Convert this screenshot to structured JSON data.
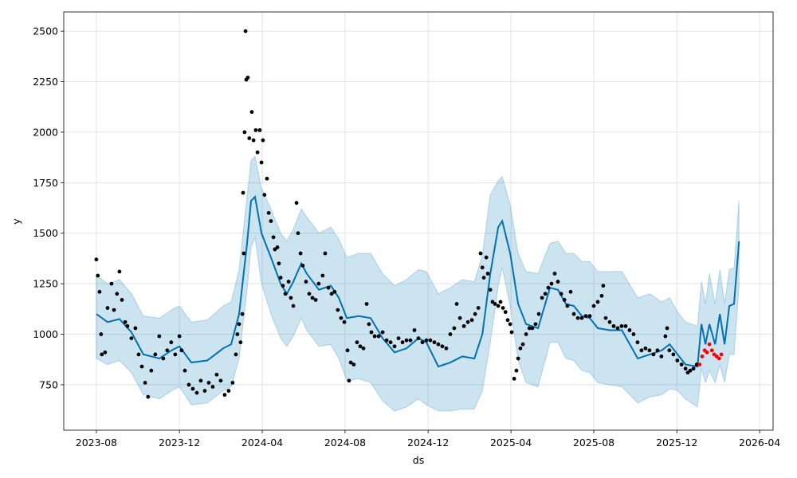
{
  "chart_data": {
    "type": "forecast",
    "xlabel": "ds",
    "ylabel": "y",
    "xlim": [
      2023.452,
      2026.304
    ],
    "ylim": [
      525,
      2595
    ],
    "xticks": [
      {
        "value": 2023.583,
        "label": "2023-08"
      },
      {
        "value": 2023.917,
        "label": "2023-12"
      },
      {
        "value": 2024.25,
        "label": "2024-04"
      },
      {
        "value": 2024.583,
        "label": "2024-08"
      },
      {
        "value": 2024.917,
        "label": "2024-12"
      },
      {
        "value": 2025.25,
        "label": "2025-04"
      },
      {
        "value": 2025.583,
        "label": "2025-08"
      },
      {
        "value": 2025.917,
        "label": "2025-12"
      },
      {
        "value": 2026.25,
        "label": "2026-04"
      }
    ],
    "yticks": [
      750,
      1000,
      1250,
      1500,
      1750,
      2000,
      2250,
      2500
    ],
    "grid": true,
    "forecast": {
      "color": "#0072B2",
      "x": [
        2023.583,
        2023.628,
        2023.676,
        2023.724,
        2023.772,
        2023.837,
        2023.885,
        2023.917,
        2023.965,
        2024.029,
        2024.093,
        2024.125,
        2024.157,
        2024.189,
        2024.205,
        2024.221,
        2024.247,
        2024.285,
        2024.324,
        2024.349,
        2024.375,
        2024.407,
        2024.429,
        2024.478,
        2024.526,
        2024.558,
        2024.59,
        2024.638,
        2024.686,
        2024.734,
        2024.782,
        2024.83,
        2024.878,
        2024.91,
        2024.958,
        2025.006,
        2025.054,
        2025.103,
        2025.135,
        2025.167,
        2025.199,
        2025.215,
        2025.247,
        2025.279,
        2025.311,
        2025.359,
        2025.407,
        2025.439,
        2025.471,
        2025.503,
        2025.535,
        2025.567,
        2025.599,
        2025.647,
        2025.696,
        2025.76,
        2025.808,
        2025.856,
        2025.888,
        2025.92,
        2025.952,
        2026.0,
        2026.016,
        2026.032,
        2026.048,
        2026.071,
        2026.09,
        2026.109,
        2026.128,
        2026.147,
        2026.167
      ],
      "values": [
        1100,
        1060,
        1075,
        1010,
        900,
        880,
        920,
        940,
        860,
        870,
        930,
        950,
        1100,
        1450,
        1660,
        1680,
        1500,
        1380,
        1250,
        1200,
        1260,
        1350,
        1300,
        1220,
        1240,
        1180,
        1080,
        1090,
        1080,
        980,
        910,
        930,
        980,
        960,
        840,
        860,
        890,
        880,
        1000,
        1300,
        1530,
        1560,
        1400,
        1150,
        1050,
        1030,
        1230,
        1220,
        1150,
        1140,
        1090,
        1080,
        1030,
        1020,
        1020,
        880,
        900,
        920,
        950,
        900,
        850,
        840,
        1050,
        950,
        1050,
        950,
        1100,
        950,
        1140,
        1150,
        1460
      ],
      "lower": [
        880,
        850,
        870,
        810,
        700,
        680,
        720,
        740,
        650,
        660,
        720,
        740,
        880,
        1220,
        1430,
        1480,
        1250,
        1100,
        980,
        940,
        990,
        1080,
        1020,
        940,
        950,
        880,
        770,
        780,
        760,
        670,
        620,
        640,
        680,
        650,
        620,
        620,
        630,
        630,
        720,
        960,
        1240,
        1330,
        1140,
        870,
        760,
        740,
        960,
        960,
        880,
        870,
        820,
        810,
        760,
        750,
        740,
        660,
        690,
        700,
        730,
        720,
        680,
        640,
        830,
        760,
        820,
        760,
        850,
        760,
        900,
        900,
        1240
      ],
      "upper": [
        1290,
        1250,
        1270,
        1200,
        1090,
        1080,
        1120,
        1140,
        1060,
        1070,
        1140,
        1160,
        1320,
        1680,
        1860,
        1880,
        1720,
        1620,
        1500,
        1460,
        1520,
        1620,
        1580,
        1500,
        1530,
        1470,
        1380,
        1400,
        1400,
        1300,
        1240,
        1270,
        1320,
        1310,
        1200,
        1230,
        1270,
        1260,
        1390,
        1690,
        1760,
        1780,
        1640,
        1400,
        1310,
        1300,
        1450,
        1460,
        1400,
        1400,
        1360,
        1360,
        1310,
        1310,
        1310,
        1180,
        1200,
        1160,
        1180,
        1110,
        1060,
        1040,
        1260,
        1150,
        1300,
        1150,
        1320,
        1150,
        1320,
        1330,
        1660
      ]
    },
    "observed": {
      "color": "#000000",
      "x": [
        2023.583,
        2023.589,
        2023.596,
        2023.602,
        2023.605,
        2023.618,
        2023.628,
        2023.644,
        2023.654,
        2023.666,
        2023.676,
        2023.686,
        2023.699,
        2023.708,
        2023.724,
        2023.74,
        2023.753,
        2023.766,
        2023.779,
        2023.791,
        2023.804,
        2023.82,
        2023.836,
        2023.852,
        2023.868,
        2023.884,
        2023.9,
        2023.917,
        2023.926,
        2023.939,
        2023.955,
        2023.971,
        2023.987,
        2024.003,
        2024.019,
        2024.035,
        2024.051,
        2024.067,
        2024.083,
        2024.099,
        2024.115,
        2024.131,
        2024.144,
        2024.15,
        2024.157,
        2024.163,
        2024.17,
        2024.173,
        2024.176,
        2024.179,
        2024.183,
        2024.186,
        2024.192,
        2024.198,
        2024.208,
        2024.215,
        2024.224,
        2024.231,
        2024.24,
        2024.247,
        2024.253,
        2024.259,
        2024.269,
        2024.276,
        2024.285,
        2024.295,
        2024.301,
        2024.311,
        2024.317,
        2024.324,
        2024.333,
        2024.343,
        2024.356,
        2024.365,
        2024.375,
        2024.388,
        2024.394,
        2024.404,
        2024.413,
        2024.426,
        2024.439,
        2024.452,
        2024.465,
        2024.477,
        2024.493,
        2024.503,
        2024.516,
        2024.529,
        2024.541,
        2024.554,
        2024.567,
        2024.58,
        2024.593,
        2024.599,
        2024.606,
        2024.618,
        2024.631,
        2024.644,
        2024.657,
        2024.67,
        2024.679,
        2024.689,
        2024.702,
        2024.718,
        2024.734,
        2024.75,
        2024.766,
        2024.782,
        2024.798,
        2024.814,
        2024.83,
        2024.846,
        2024.862,
        2024.878,
        2024.894,
        2024.91,
        2024.926,
        2024.942,
        2024.958,
        2024.974,
        2024.99,
        2025.006,
        2025.022,
        2025.032,
        2025.045,
        2025.061,
        2025.077,
        2025.093,
        2025.106,
        2025.119,
        2025.128,
        2025.135,
        2025.141,
        2025.151,
        2025.157,
        2025.167,
        2025.176,
        2025.186,
        2025.199,
        2025.208,
        2025.218,
        2025.228,
        2025.237,
        2025.247,
        2025.253,
        2025.263,
        2025.272,
        2025.279,
        2025.288,
        2025.298,
        2025.311,
        2025.324,
        2025.336,
        2025.349,
        2025.362,
        2025.375,
        2025.388,
        2025.4,
        2025.413,
        2025.426,
        2025.439,
        2025.452,
        2025.465,
        2025.477,
        2025.49,
        2025.503,
        2025.519,
        2025.535,
        2025.551,
        2025.567,
        2025.583,
        2025.599,
        2025.615,
        2025.621,
        2025.631,
        2025.647,
        2025.663,
        2025.679,
        2025.695,
        2025.711,
        2025.727,
        2025.743,
        2025.759,
        2025.775,
        2025.791,
        2025.807,
        2025.823,
        2025.839,
        2025.855,
        2025.871,
        2025.878,
        2025.887,
        2025.903,
        2025.919,
        2025.936,
        2025.952,
        2025.961,
        2025.971,
        2025.984,
        2025.997
      ],
      "values": [
        1370,
        1290,
        1210,
        1000,
        900,
        910,
        1130,
        1250,
        1120,
        1200,
        1310,
        1170,
        1060,
        1040,
        980,
        1030,
        900,
        840,
        760,
        690,
        820,
        900,
        990,
        880,
        920,
        960,
        900,
        990,
        920,
        820,
        750,
        730,
        710,
        770,
        720,
        760,
        740,
        800,
        770,
        700,
        720,
        760,
        900,
        1000,
        1050,
        960,
        1100,
        1700,
        1400,
        2000,
        2500,
        2260,
        2270,
        1970,
        2100,
        1960,
        2010,
        1900,
        2010,
        1850,
        1960,
        1690,
        1770,
        1600,
        1560,
        1480,
        1420,
        1430,
        1350,
        1280,
        1240,
        1200,
        1260,
        1180,
        1140,
        1650,
        1500,
        1400,
        1340,
        1260,
        1200,
        1180,
        1170,
        1250,
        1290,
        1400,
        1230,
        1200,
        1210,
        1120,
        1080,
        1060,
        920,
        770,
        860,
        850,
        960,
        940,
        930,
        1150,
        1050,
        1010,
        990,
        990,
        1010,
        970,
        960,
        940,
        980,
        960,
        970,
        970,
        1020,
        980,
        960,
        970,
        970,
        960,
        950,
        940,
        930,
        1000,
        1030,
        1150,
        1080,
        1040,
        1060,
        1070,
        1100,
        1130,
        1400,
        1330,
        1280,
        1380,
        1300,
        1220,
        1160,
        1150,
        1140,
        1160,
        1130,
        1110,
        1070,
        1050,
        1010,
        780,
        820,
        880,
        930,
        950,
        1000,
        1030,
        1030,
        1050,
        1100,
        1180,
        1200,
        1230,
        1250,
        1300,
        1260,
        1200,
        1170,
        1140,
        1210,
        1100,
        1080,
        1080,
        1090,
        1090,
        1140,
        1160,
        1190,
        1240,
        1080,
        1060,
        1040,
        1030,
        1040,
        1040,
        1020,
        1000,
        960,
        920,
        930,
        920,
        900,
        920,
        890,
        990,
        1030,
        920,
        900,
        870,
        850,
        830,
        810,
        820,
        830,
        850
      ]
    },
    "test": {
      "color": "#ff0000",
      "x": [
        2026.009,
        2026.019,
        2026.029,
        2026.038,
        2026.048,
        2026.058,
        2026.067,
        2026.077,
        2026.087,
        2026.096
      ],
      "values": [
        850,
        890,
        920,
        910,
        950,
        920,
        900,
        890,
        880,
        900
      ]
    }
  }
}
